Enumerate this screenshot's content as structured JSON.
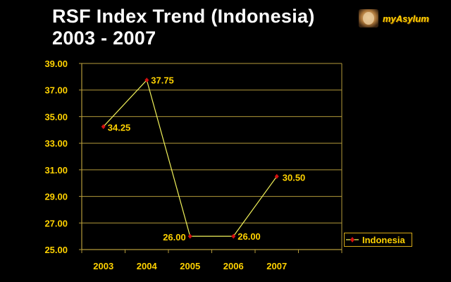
{
  "title_line1": "RSF Index Trend (Indonesia)",
  "title_line2": "2003 - 2007",
  "logo_text": "myAsylum",
  "colors": {
    "background": "#000000",
    "axis": "#b39a3a",
    "grid": "#b39a3a",
    "line": "#f2f25a",
    "marker": "#d41010",
    "label": "#ffd200",
    "title": "#ffffff"
  },
  "chart_data": {
    "type": "line",
    "title": "RSF Index Trend (Indonesia) 2003 - 2007",
    "categories": [
      "2003",
      "2004",
      "2005",
      "2006",
      "2007"
    ],
    "series": [
      {
        "name": "Indonesia",
        "values": [
          34.25,
          37.75,
          26.0,
          26.0,
          30.5
        ]
      }
    ],
    "data_labels": [
      "34.25",
      "37.75",
      "26.00",
      "26.00",
      "30.50"
    ],
    "y_ticks": [
      "25.00",
      "27.00",
      "29.00",
      "31.00",
      "33.00",
      "35.00",
      "37.00",
      "39.00"
    ],
    "ylim": [
      25,
      39
    ],
    "grid": true,
    "legend_position": "right"
  }
}
